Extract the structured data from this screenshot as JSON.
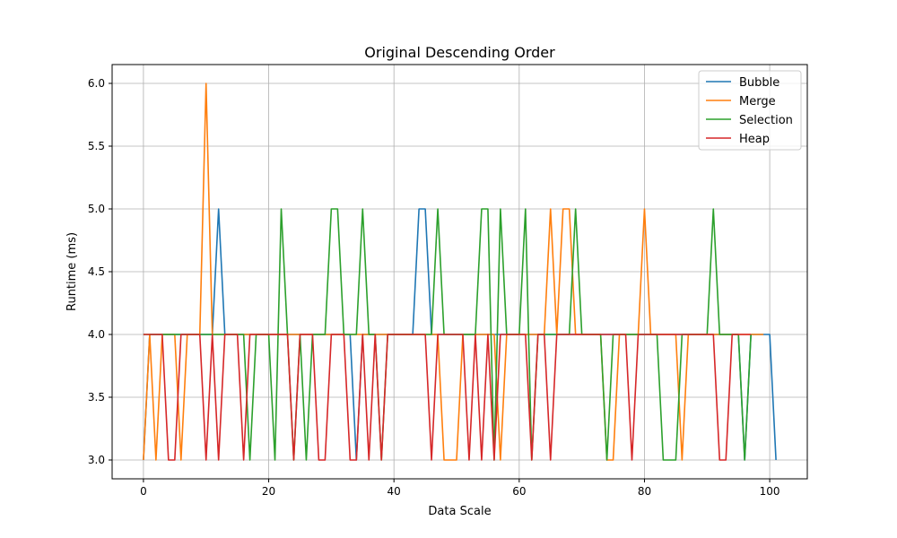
{
  "chart_data": {
    "type": "line",
    "title": "Original Descending Order",
    "xlabel": "Data Scale",
    "ylabel": "Runtime (ms)",
    "xlim": [
      -5,
      106
    ],
    "ylim": [
      2.85,
      6.15
    ],
    "xticks": [
      0,
      20,
      40,
      60,
      80,
      100
    ],
    "xtick_labels": [
      "0",
      "20",
      "40",
      "60",
      "80",
      "100"
    ],
    "yticks": [
      3.0,
      3.5,
      4.0,
      4.5,
      5.0,
      5.5,
      6.0
    ],
    "ytick_labels": [
      "3.0",
      "3.5",
      "4.0",
      "4.5",
      "5.0",
      "5.5",
      "6.0"
    ],
    "grid": true,
    "legend_position": "upper right",
    "series": [
      {
        "name": "Bubble",
        "color": "#1f77b4",
        "values": [
          3,
          4,
          4,
          4,
          4,
          4,
          4,
          4,
          4,
          4,
          4,
          4,
          5,
          4,
          4,
          4,
          4,
          4,
          4,
          4,
          4,
          4,
          4,
          4,
          4,
          4,
          4,
          4,
          4,
          4,
          4,
          4,
          4,
          4,
          3,
          4,
          4,
          4,
          4,
          4,
          4,
          4,
          4,
          4,
          5,
          5,
          4,
          4,
          4,
          4,
          4,
          4,
          4,
          4,
          4,
          4,
          4,
          4,
          4,
          4,
          4,
          4,
          4,
          4,
          4,
          4,
          4,
          4,
          4,
          4,
          4,
          4,
          4,
          4,
          4,
          4,
          4,
          4,
          4,
          4,
          4,
          4,
          4,
          4,
          4,
          4,
          4,
          4,
          4,
          4,
          4,
          4,
          4,
          4,
          4,
          4,
          3,
          4,
          4,
          4,
          4,
          3
        ]
      },
      {
        "name": "Merge",
        "color": "#ff7f0e",
        "values": [
          3,
          4,
          3,
          4,
          4,
          4,
          3,
          4,
          4,
          4,
          6,
          4,
          4,
          4,
          4,
          4,
          4,
          4,
          4,
          4,
          4,
          4,
          4,
          4,
          4,
          4,
          4,
          4,
          4,
          4,
          4,
          4,
          4,
          4,
          4,
          4,
          4,
          4,
          4,
          4,
          4,
          4,
          4,
          4,
          4,
          4,
          4,
          4,
          3,
          3,
          3,
          4,
          4,
          4,
          4,
          4,
          4,
          3,
          4,
          4,
          4,
          4,
          4,
          4,
          4,
          5,
          4,
          5,
          5,
          4,
          4,
          4,
          4,
          4,
          3,
          3,
          4,
          4,
          4,
          4,
          5,
          4,
          4,
          4,
          4,
          4,
          3,
          4,
          4,
          4,
          4,
          4,
          4,
          4,
          4,
          4,
          4,
          4,
          4,
          4
        ]
      },
      {
        "name": "Selection",
        "color": "#2ca02c",
        "values": [
          4,
          4,
          4,
          4,
          4,
          4,
          4,
          4,
          4,
          4,
          4,
          4,
          4,
          4,
          4,
          4,
          4,
          3,
          4,
          4,
          4,
          3,
          5,
          4,
          3,
          4,
          3,
          4,
          4,
          4,
          5,
          5,
          4,
          4,
          4,
          5,
          4,
          4,
          3,
          4,
          4,
          4,
          4,
          4,
          4,
          4,
          4,
          5,
          4,
          4,
          4,
          4,
          4,
          4,
          5,
          5,
          3,
          5,
          4,
          4,
          4,
          5,
          3,
          4,
          4,
          4,
          4,
          4,
          4,
          5,
          4,
          4,
          4,
          4,
          3,
          4,
          4,
          4,
          4,
          4,
          4,
          4,
          4,
          3,
          3,
          3,
          4,
          4,
          4,
          4,
          4,
          5,
          4,
          4,
          4,
          4,
          3,
          4
        ]
      },
      {
        "name": "Heap",
        "color": "#d62728",
        "values": [
          4,
          4,
          4,
          4,
          3,
          3,
          4,
          4,
          4,
          4,
          3,
          4,
          3,
          4,
          4,
          4,
          3,
          4,
          4,
          4,
          4,
          4,
          4,
          4,
          3,
          4,
          4,
          4,
          3,
          3,
          4,
          4,
          4,
          3,
          3,
          4,
          3,
          4,
          3,
          4,
          4,
          4,
          4,
          4,
          4,
          4,
          3,
          4,
          4,
          4,
          4,
          4,
          3,
          4,
          3,
          4,
          3,
          4,
          4,
          4,
          4,
          4,
          3,
          4,
          4,
          3,
          4,
          4,
          4,
          4,
          4,
          4,
          4,
          4,
          4,
          4,
          4,
          4,
          3,
          4,
          4,
          4,
          4,
          4,
          4,
          4,
          4,
          4,
          4,
          4,
          4,
          4,
          3,
          3,
          4,
          4,
          4,
          4
        ]
      }
    ]
  }
}
